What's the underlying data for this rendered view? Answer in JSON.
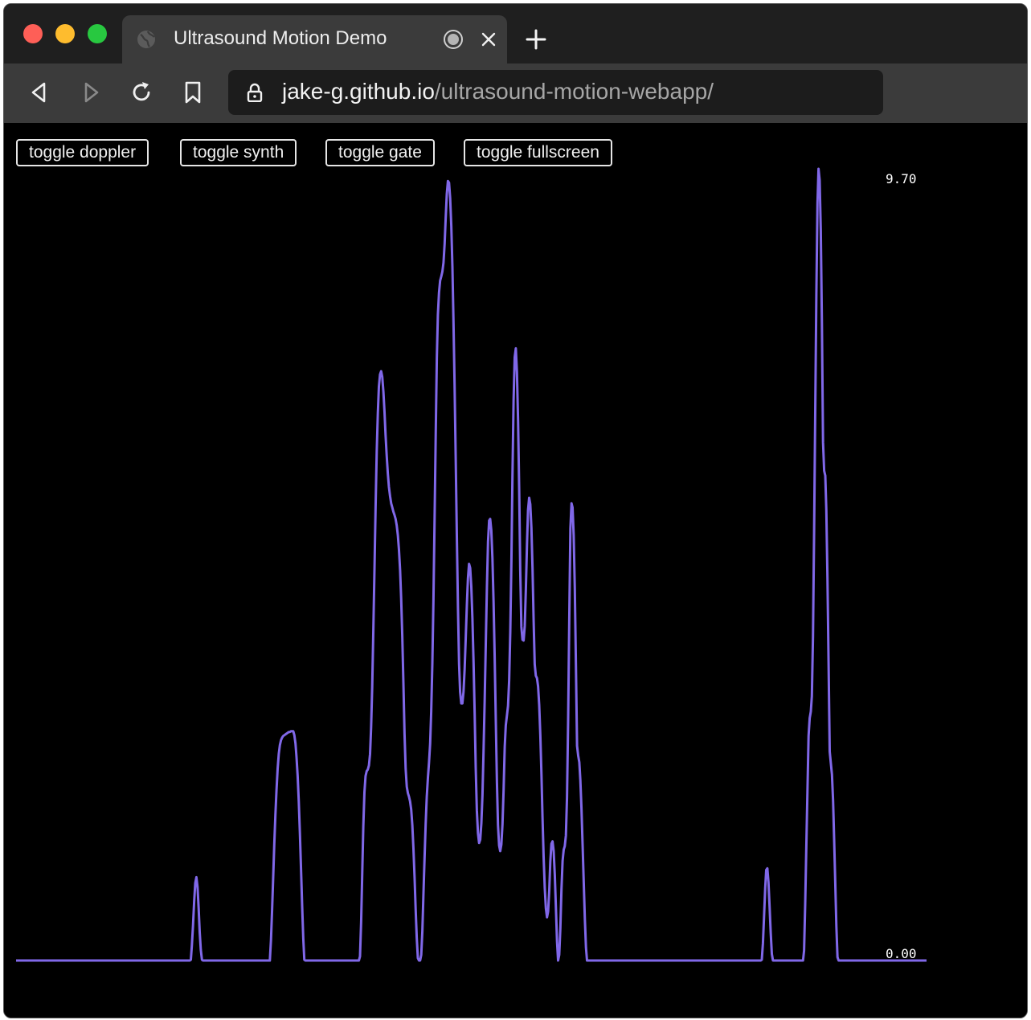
{
  "browser": {
    "tab_title": "Ultrasound Motion Demo",
    "url_host": "jake-g.github.io",
    "url_path": "/ultrasound-motion-webapp/",
    "traffic_lights": {
      "close": "#fe5f57",
      "minimize": "#febc2e",
      "zoom": "#28c840"
    },
    "icons": [
      "globe-icon",
      "record-icon",
      "close-icon",
      "plus-icon",
      "back-icon",
      "forward-icon",
      "reload-icon",
      "bookmark-icon",
      "lock-icon"
    ]
  },
  "controls": {
    "doppler": "toggle doppler",
    "synth": "toggle synth",
    "gate": "toggle gate",
    "fullscreen": "toggle fullscreen"
  },
  "chart_data": {
    "type": "line",
    "y_max_label": "9.70",
    "y_min_label": "0.00",
    "ylim": [
      0,
      9.7
    ],
    "line_color": "#8068e8",
    "grid": false,
    "series": [
      {
        "values": [
          0,
          0,
          0,
          0,
          0,
          0,
          0,
          0,
          0,
          0,
          0,
          0,
          0,
          0,
          0,
          0,
          0,
          0,
          0,
          0,
          0,
          0,
          0,
          0,
          0,
          0,
          0,
          0,
          0,
          0,
          0,
          0,
          0,
          0,
          0,
          0,
          0,
          0,
          0,
          0,
          0,
          0,
          0,
          0,
          0,
          0,
          0,
          0,
          0,
          0,
          0,
          0,
          0,
          0,
          0,
          0,
          0,
          0,
          0,
          0,
          0,
          0,
          0,
          0,
          0,
          0,
          0,
          0,
          0,
          0,
          0,
          0,
          0,
          0,
          0,
          0,
          0,
          0,
          0,
          0,
          0,
          0,
          0,
          0,
          0,
          0,
          0,
          0,
          0,
          0,
          0,
          0,
          0,
          0,
          0,
          0,
          0,
          0,
          0,
          0,
          0,
          0,
          0,
          0,
          0,
          0,
          0,
          0,
          0,
          0,
          0,
          0,
          0,
          0,
          0,
          0,
          0,
          0,
          0,
          0,
          0,
          0,
          0,
          0,
          0,
          0,
          0,
          0,
          0,
          0,
          0,
          0,
          0,
          0,
          0,
          0,
          0,
          0,
          0,
          0,
          0,
          0,
          0,
          0,
          0,
          0,
          0,
          0,
          0,
          0,
          0,
          0,
          0,
          0,
          0,
          0,
          0,
          0.01,
          0.19,
          0.43,
          0.72,
          0.95,
          1.02,
          0.9,
          0.64,
          0.35,
          0.13,
          0.01,
          0,
          0,
          0,
          0,
          0,
          0,
          0,
          0,
          0,
          0,
          0,
          0,
          0,
          0,
          0,
          0,
          0,
          0,
          0,
          0,
          0,
          0,
          0,
          0,
          0,
          0,
          0,
          0,
          0,
          0,
          0,
          0,
          0,
          0,
          0,
          0,
          0,
          0,
          0,
          0,
          0,
          0,
          0,
          0,
          0,
          0,
          0,
          0,
          0,
          0,
          0,
          0,
          0,
          0,
          0,
          0,
          0,
          0,
          0,
          0,
          0,
          0.25,
          0.62,
          1.03,
          1.42,
          1.78,
          2.09,
          2.35,
          2.53,
          2.64,
          2.7,
          2.73,
          2.75,
          2.76,
          2.77,
          2.78,
          2.79,
          2.8,
          2.8,
          2.81,
          2.81,
          2.81,
          2.76,
          2.66,
          2.49,
          2.26,
          1.95,
          1.56,
          1.12,
          0.67,
          0.27,
          0.01,
          0,
          0,
          0,
          0,
          0,
          0,
          0,
          0,
          0,
          0,
          0,
          0,
          0,
          0,
          0,
          0,
          0,
          0,
          0,
          0,
          0,
          0,
          0,
          0,
          0,
          0,
          0,
          0,
          0,
          0,
          0,
          0,
          0,
          0,
          0,
          0,
          0,
          0,
          0,
          0,
          0,
          0,
          0,
          0,
          0,
          0,
          0,
          0,
          0,
          0.05,
          0.47,
          1.08,
          1.64,
          2.06,
          2.26,
          2.32,
          2.34,
          2.39,
          2.53,
          2.85,
          3.36,
          4.05,
          4.79,
          5.56,
          6.23,
          6.71,
          7.03,
          7.18,
          7.22,
          7.15,
          6.97,
          6.72,
          6.44,
          6.19,
          5.97,
          5.8,
          5.69,
          5.6,
          5.55,
          5.5,
          5.46,
          5.41,
          5.33,
          5.21,
          5.03,
          4.78,
          4.44,
          3.98,
          3.4,
          2.78,
          2.35,
          2.13,
          2.05,
          2.01,
          1.95,
          1.85,
          1.66,
          1.37,
          1.02,
          0.64,
          0.28,
          0.03,
          0,
          0,
          0.07,
          0.36,
          0.8,
          1.25,
          1.67,
          2.01,
          2.24,
          2.43,
          2.66,
          3.05,
          3.63,
          4.42,
          5.4,
          6.43,
          7.38,
          7.91,
          8.18,
          8.33,
          8.38,
          8.44,
          8.55,
          8.78,
          9.09,
          9.39,
          9.55,
          9.53,
          9.34,
          9.0,
          8.5,
          7.84,
          7.05,
          6.15,
          5.2,
          4.32,
          3.63,
          3.29,
          3.15,
          3.15,
          3.29,
          3.57,
          3.96,
          4.36,
          4.68,
          4.86,
          4.81,
          4.58,
          4.19,
          3.65,
          3.02,
          2.36,
          1.84,
          1.56,
          1.44,
          1.48,
          1.68,
          2.03,
          2.55,
          3.17,
          3.87,
          4.56,
          5.13,
          5.39,
          5.41,
          5.27,
          4.93,
          4.39,
          3.71,
          2.93,
          2.18,
          1.66,
          1.41,
          1.34,
          1.42,
          1.67,
          2.09,
          2.62,
          2.88,
          3.0,
          3.12,
          3.43,
          4.03,
          4.89,
          5.92,
          6.86,
          7.39,
          7.5,
          7.21,
          6.61,
          5.76,
          4.78,
          4.09,
          3.93,
          3.92,
          4.1,
          4.55,
          5.1,
          5.52,
          5.67,
          5.59,
          5.3,
          4.8,
          4.15,
          3.63,
          3.49,
          3.46,
          3.36,
          3.13,
          2.76,
          2.28,
          1.76,
          1.27,
          0.89,
          0.64,
          0.53,
          0.6,
          0.86,
          1.21,
          1.43,
          1.46,
          1.34,
          1.05,
          0.64,
          0.23,
          0,
          0.07,
          0.39,
          0.87,
          1.22,
          1.36,
          1.4,
          1.53,
          2.0,
          2.95,
          4.17,
          5.29,
          5.6,
          5.55,
          5.21,
          4.56,
          3.61,
          2.63,
          2.51,
          2.43,
          2.21,
          1.86,
          1.42,
          0.96,
          0.51,
          0.16,
          0,
          0,
          0,
          0,
          0,
          0,
          0,
          0,
          0,
          0,
          0,
          0,
          0,
          0,
          0,
          0,
          0,
          0,
          0,
          0,
          0,
          0,
          0,
          0,
          0,
          0,
          0,
          0,
          0,
          0,
          0,
          0,
          0,
          0,
          0,
          0,
          0,
          0,
          0,
          0,
          0,
          0,
          0,
          0,
          0,
          0,
          0,
          0,
          0,
          0,
          0,
          0,
          0,
          0,
          0,
          0,
          0,
          0,
          0,
          0,
          0,
          0,
          0,
          0,
          0,
          0,
          0,
          0,
          0,
          0,
          0,
          0,
          0,
          0,
          0,
          0,
          0,
          0,
          0,
          0,
          0,
          0,
          0,
          0,
          0,
          0,
          0,
          0,
          0,
          0,
          0,
          0,
          0,
          0,
          0,
          0,
          0,
          0,
          0,
          0,
          0,
          0,
          0,
          0,
          0,
          0,
          0,
          0,
          0,
          0,
          0,
          0,
          0,
          0,
          0,
          0,
          0,
          0,
          0,
          0,
          0,
          0,
          0,
          0,
          0,
          0,
          0,
          0,
          0,
          0,
          0,
          0,
          0,
          0,
          0,
          0,
          0,
          0,
          0,
          0,
          0,
          0,
          0,
          0,
          0,
          0,
          0,
          0,
          0,
          0,
          0,
          0,
          0,
          0,
          0,
          0,
          0,
          0.01,
          0.21,
          0.54,
          0.88,
          1.11,
          1.13,
          0.96,
          0.66,
          0.34,
          0.08,
          0,
          0,
          0,
          0,
          0,
          0,
          0,
          0,
          0,
          0,
          0,
          0,
          0,
          0,
          0,
          0,
          0,
          0,
          0,
          0,
          0,
          0,
          0,
          0,
          0,
          0,
          0,
          0,
          0.12,
          0.69,
          1.39,
          2.07,
          2.75,
          2.97,
          3.05,
          3.24,
          3.97,
          5.26,
          6.72,
          8.17,
          9.28,
          9.7,
          9.56,
          8.94,
          7.8,
          6.35,
          6.0,
          5.94,
          5.52,
          4.69,
          3.64,
          2.56,
          2.42,
          2.28,
          1.96,
          1.49,
          0.96,
          0.42,
          0.04,
          0,
          0,
          0,
          0,
          0,
          0,
          0,
          0,
          0,
          0,
          0,
          0,
          0,
          0,
          0,
          0,
          0,
          0,
          0,
          0,
          0,
          0,
          0,
          0,
          0,
          0,
          0,
          0,
          0,
          0,
          0,
          0,
          0,
          0,
          0,
          0,
          0,
          0,
          0,
          0,
          0,
          0,
          0,
          0,
          0,
          0,
          0,
          0,
          0,
          0,
          0,
          0,
          0,
          0,
          0,
          0,
          0,
          0,
          0,
          0,
          0,
          0,
          0,
          0,
          0,
          0,
          0,
          0,
          0,
          0,
          0,
          0,
          0,
          0,
          0,
          0,
          0,
          0,
          0,
          0
        ]
      }
    ]
  }
}
